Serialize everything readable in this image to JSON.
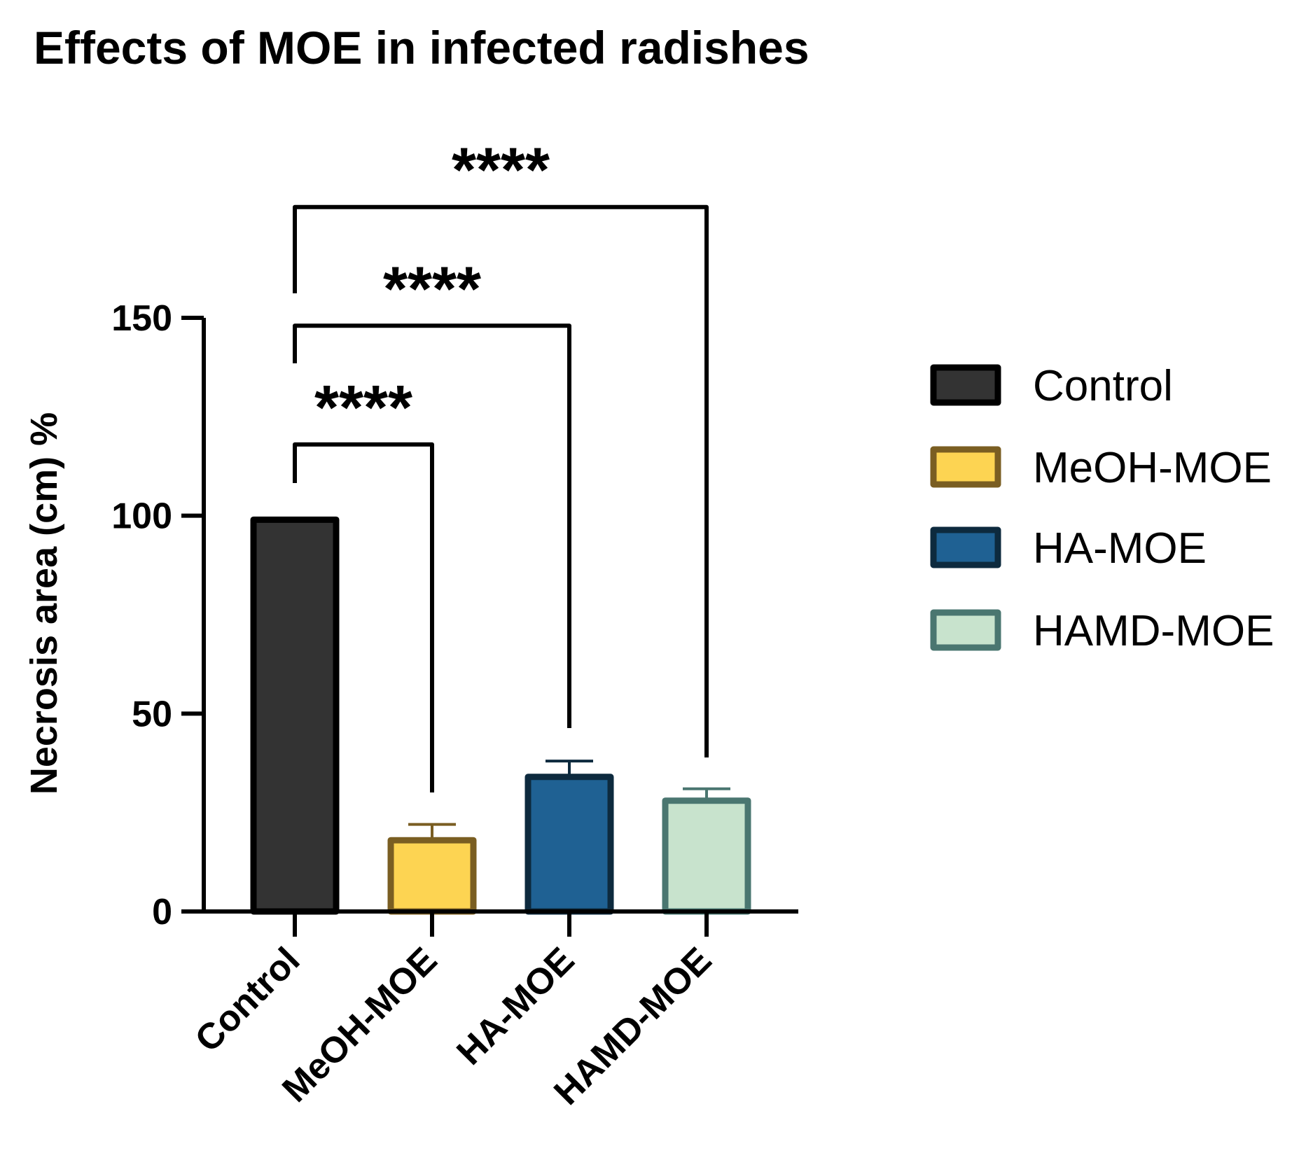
{
  "chart_data": {
    "type": "bar",
    "title": "Effects of MOE in infected radishes",
    "xlabel": "",
    "ylabel": "Necrosis area (cm) %",
    "ylim": [
      0,
      150
    ],
    "yticks": [
      0,
      50,
      100,
      150
    ],
    "categories": [
      "Control",
      "MeOH-MOE",
      "HA-MOE",
      "HAMD-MOE"
    ],
    "values": [
      99,
      18,
      34,
      28
    ],
    "errors": [
      0,
      4,
      4,
      3
    ],
    "fill_colors": [
      "#333333",
      "#FDD452",
      "#1F6193",
      "#C8E3CD"
    ],
    "edge_colors": [
      "#000000",
      "#7A5E22",
      "#0D2A3E",
      "#4A7670"
    ],
    "legend": {
      "position": "right",
      "entries": [
        "Control",
        "MeOH-MOE",
        "HA-MOE",
        "HAMD-MOE"
      ]
    },
    "significance": [
      {
        "from": "Control",
        "to": "MeOH-MOE",
        "label": "****",
        "level": 118
      },
      {
        "from": "Control",
        "to": "HA-MOE",
        "label": "****",
        "level": 148
      },
      {
        "from": "Control",
        "to": "HAMD-MOE",
        "label": "****",
        "level": 178
      }
    ]
  }
}
